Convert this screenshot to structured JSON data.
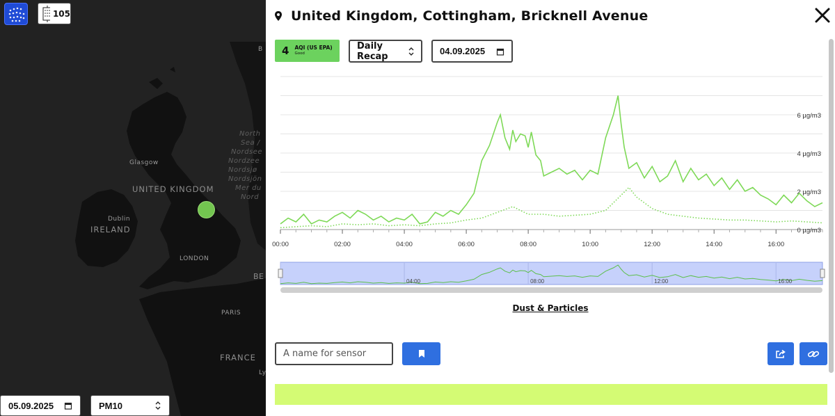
{
  "map": {
    "labels": {
      "country_uk": "UNITED KINGDOM",
      "country_ireland": "IRELAND",
      "country_france": "FRANCE",
      "city_glasgow": "Glasgow",
      "city_dublin": "Dublin",
      "city_london": "LONDON",
      "city_paris": "PARIS",
      "sea_lines": [
        "North",
        "Sea /",
        "Nordsee",
        "Nordzee",
        "Nordsjø",
        "Nordsjön",
        "Mer du",
        "Nord"
      ],
      "edge_be": "BE",
      "edge_b": "B",
      "edge_ly": "Ly"
    },
    "sensor_count": "105",
    "selected_date": "05.09.2025",
    "selected_param": "PM10",
    "colors": {
      "sensor_dot": "#7ed957",
      "land": "#121212",
      "water": "#222222"
    }
  },
  "panel": {
    "title": "United Kingdom, Cottingham, Bricknell Avenue",
    "aqi": {
      "value": "4",
      "label": "AQI (US EPA)",
      "category": "Good",
      "color": "#6cd25e"
    },
    "recap_select": "Daily Recap",
    "date": "04.09.2025",
    "section_title": "Dust & Particles",
    "sensor_name_placeholder": "A name for sensor",
    "status_color": "#d4fb74",
    "icons": [
      "map-pin-icon",
      "close-icon",
      "calendar-icon",
      "sort-arrows-icon",
      "bookmark-icon",
      "share-icon",
      "link-icon"
    ]
  },
  "chart_data": {
    "type": "line",
    "title": "",
    "xlabel": "",
    "ylabel": "",
    "x_tick_labels": [
      "00:00",
      "02:00",
      "04:00",
      "06:00",
      "08:00",
      "10:00",
      "12:00",
      "14:00",
      "16:00"
    ],
    "y_tick_labels": [
      "0 µg/m3",
      "2 µg/m3",
      "4 µg/m3",
      "6 µg/m3"
    ],
    "ylim": [
      0,
      8
    ],
    "xlim_hours": [
      0,
      17.5
    ],
    "grid": true,
    "series": [
      {
        "style": "solid",
        "color": "#7ed957",
        "x_hours": [
          0,
          0.25,
          0.5,
          0.75,
          1,
          1.25,
          1.5,
          1.75,
          2,
          2.25,
          2.5,
          2.75,
          3,
          3.25,
          3.5,
          3.75,
          4,
          4.25,
          4.5,
          4.75,
          5,
          5.25,
          5.5,
          5.75,
          6,
          6.25,
          6.5,
          6.75,
          7,
          7.1,
          7.25,
          7.4,
          7.5,
          7.6,
          7.75,
          7.9,
          8,
          8.1,
          8.25,
          8.4,
          8.5,
          8.75,
          9,
          9.25,
          9.5,
          9.75,
          10,
          10.25,
          10.5,
          10.75,
          10.9,
          11,
          11.1,
          11.25,
          11.5,
          11.75,
          12,
          12.25,
          12.5,
          12.75,
          13,
          13.25,
          13.5,
          13.75,
          14,
          14.25,
          14.5,
          14.75,
          15,
          15.25,
          15.5,
          15.75,
          16,
          16.25,
          16.5,
          16.75,
          17,
          17.25,
          17.5
        ],
        "values": [
          0.3,
          0.6,
          0.4,
          0.8,
          0.3,
          0.5,
          0.4,
          0.7,
          0.9,
          0.6,
          1.0,
          0.8,
          0.5,
          0.7,
          0.4,
          0.6,
          0.5,
          0.8,
          0.3,
          0.4,
          0.9,
          0.7,
          1.0,
          0.8,
          1.3,
          1.9,
          3.6,
          4.4,
          5.6,
          6.0,
          4.8,
          4.2,
          5.2,
          4.6,
          5.0,
          4.9,
          4.3,
          5.1,
          3.9,
          3.6,
          2.8,
          3.0,
          3.2,
          2.9,
          3.1,
          2.6,
          3.1,
          2.9,
          4.8,
          6.0,
          7.0,
          5.5,
          4.3,
          3.2,
          3.5,
          2.7,
          3.3,
          2.5,
          2.8,
          3.6,
          2.5,
          3.2,
          2.6,
          2.9,
          2.3,
          2.7,
          2.1,
          2.6,
          2.0,
          2.2,
          1.8,
          1.6,
          1.3,
          1.8,
          1.4,
          1.9,
          1.5,
          1.2,
          1.4
        ]
      },
      {
        "style": "dotted",
        "color": "#7ed957",
        "x_hours": [
          0,
          0.5,
          1,
          1.5,
          2,
          2.5,
          3,
          3.5,
          4,
          4.5,
          5,
          5.5,
          6,
          6.5,
          7,
          7.5,
          8,
          8.5,
          9,
          9.5,
          10,
          10.5,
          11,
          11.25,
          11.5,
          12,
          12.5,
          13,
          13.5,
          14,
          14.5,
          15,
          15.5,
          16,
          16.5,
          17,
          17.5
        ],
        "values": [
          0.1,
          0.15,
          0.2,
          0.15,
          0.3,
          0.25,
          0.3,
          0.2,
          0.25,
          0.2,
          0.3,
          0.35,
          0.5,
          0.6,
          0.9,
          1.2,
          0.8,
          0.8,
          0.7,
          0.75,
          0.8,
          1.0,
          1.8,
          2.2,
          1.7,
          1.1,
          0.8,
          0.7,
          0.6,
          0.55,
          0.5,
          0.5,
          0.45,
          0.4,
          0.45,
          0.4,
          0.35
        ]
      }
    ],
    "navigator_tick_labels": [
      "04:00",
      "08:00",
      "12:00",
      "16:00"
    ]
  }
}
